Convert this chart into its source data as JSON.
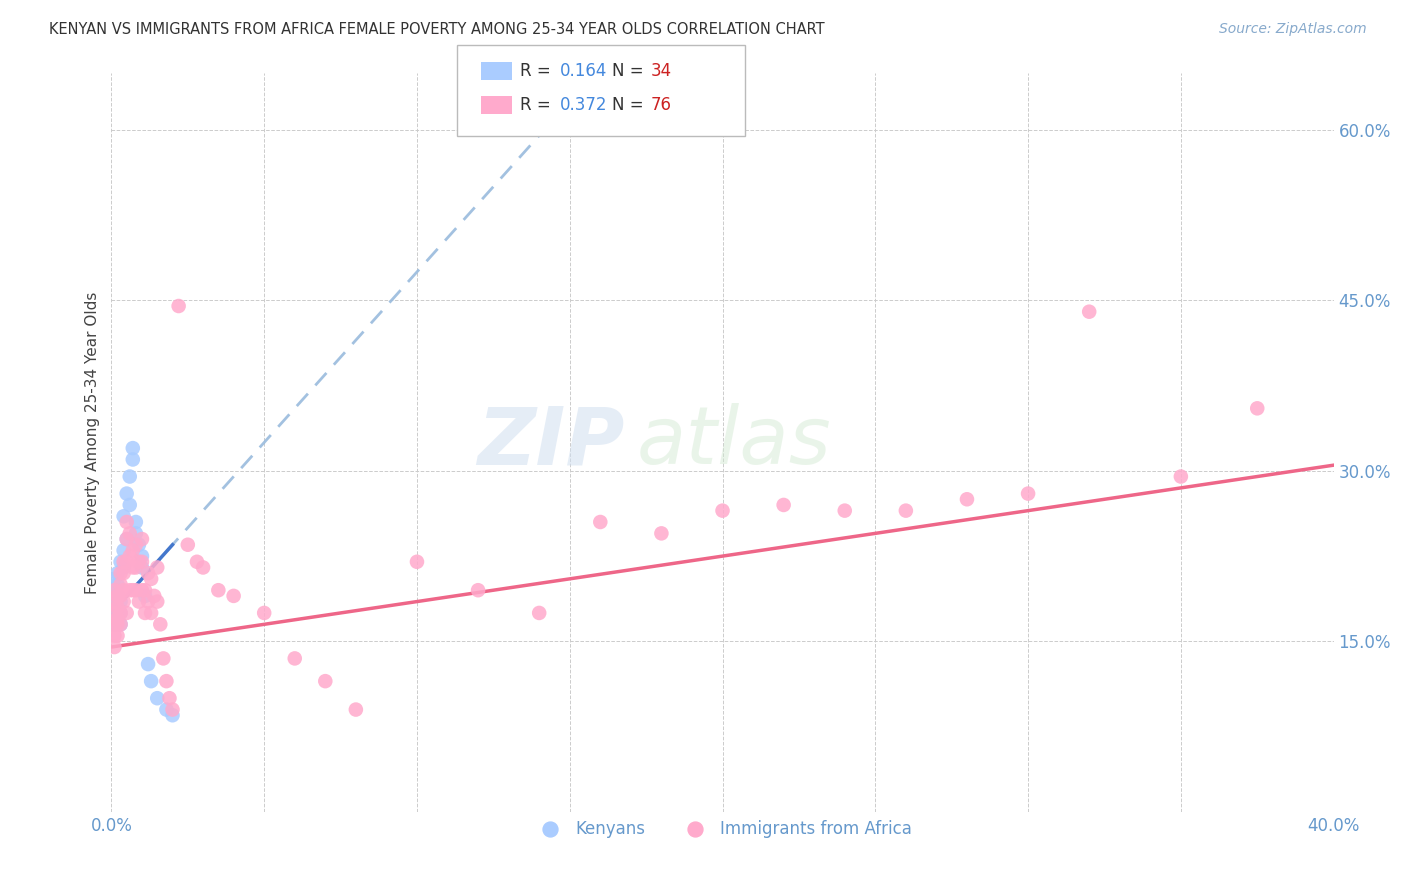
{
  "title": "KENYAN VS IMMIGRANTS FROM AFRICA FEMALE POVERTY AMONG 25-34 YEAR OLDS CORRELATION CHART",
  "source": "Source: ZipAtlas.com",
  "ylabel": "Female Poverty Among 25-34 Year Olds",
  "xmin": 0.0,
  "xmax": 0.4,
  "ymin": 0.0,
  "ymax": 0.65,
  "grid_color": "#cccccc",
  "background_color": "#ffffff",
  "kenyan_color": "#aaccff",
  "immigrant_color": "#ffaacc",
  "kenyan_line_color": "#4477cc",
  "immigrant_line_color": "#ee6688",
  "dashed_line_color": "#99bbdd",
  "legend_r_kenyan": "0.164",
  "legend_n_kenyan": "34",
  "legend_r_immigrant": "0.372",
  "legend_n_immigrant": "76",
  "watermark_zip": "ZIP",
  "watermark_atlas": "atlas",
  "kenyan_x": [
    0.001,
    0.001,
    0.001,
    0.001,
    0.001,
    0.002,
    0.002,
    0.002,
    0.002,
    0.002,
    0.003,
    0.003,
    0.003,
    0.003,
    0.004,
    0.004,
    0.004,
    0.005,
    0.005,
    0.006,
    0.006,
    0.007,
    0.007,
    0.008,
    0.008,
    0.009,
    0.01,
    0.01,
    0.011,
    0.012,
    0.013,
    0.015,
    0.018,
    0.02
  ],
  "kenyan_y": [
    0.175,
    0.165,
    0.185,
    0.195,
    0.205,
    0.18,
    0.19,
    0.175,
    0.2,
    0.21,
    0.185,
    0.175,
    0.165,
    0.22,
    0.215,
    0.23,
    0.26,
    0.24,
    0.28,
    0.295,
    0.27,
    0.32,
    0.31,
    0.255,
    0.245,
    0.235,
    0.225,
    0.215,
    0.19,
    0.13,
    0.115,
    0.1,
    0.09,
    0.085
  ],
  "immigrant_x": [
    0.001,
    0.001,
    0.001,
    0.001,
    0.001,
    0.001,
    0.002,
    0.002,
    0.002,
    0.002,
    0.002,
    0.003,
    0.003,
    0.003,
    0.003,
    0.003,
    0.004,
    0.004,
    0.004,
    0.004,
    0.005,
    0.005,
    0.005,
    0.005,
    0.006,
    0.006,
    0.006,
    0.007,
    0.007,
    0.007,
    0.008,
    0.008,
    0.008,
    0.009,
    0.009,
    0.01,
    0.01,
    0.01,
    0.011,
    0.011,
    0.012,
    0.012,
    0.013,
    0.013,
    0.014,
    0.015,
    0.015,
    0.016,
    0.017,
    0.018,
    0.019,
    0.02,
    0.022,
    0.025,
    0.028,
    0.03,
    0.035,
    0.04,
    0.05,
    0.06,
    0.07,
    0.08,
    0.1,
    0.12,
    0.14,
    0.16,
    0.18,
    0.2,
    0.22,
    0.24,
    0.26,
    0.28,
    0.3,
    0.32,
    0.35,
    0.375
  ],
  "immigrant_y": [
    0.175,
    0.185,
    0.165,
    0.195,
    0.155,
    0.145,
    0.18,
    0.19,
    0.17,
    0.165,
    0.155,
    0.21,
    0.2,
    0.19,
    0.175,
    0.165,
    0.22,
    0.21,
    0.195,
    0.185,
    0.24,
    0.255,
    0.22,
    0.175,
    0.245,
    0.225,
    0.195,
    0.23,
    0.215,
    0.195,
    0.235,
    0.215,
    0.195,
    0.22,
    0.185,
    0.24,
    0.22,
    0.195,
    0.195,
    0.175,
    0.21,
    0.185,
    0.205,
    0.175,
    0.19,
    0.215,
    0.185,
    0.165,
    0.135,
    0.115,
    0.1,
    0.09,
    0.445,
    0.235,
    0.22,
    0.215,
    0.195,
    0.19,
    0.175,
    0.135,
    0.115,
    0.09,
    0.22,
    0.195,
    0.175,
    0.255,
    0.245,
    0.265,
    0.27,
    0.265,
    0.265,
    0.275,
    0.28,
    0.44,
    0.295,
    0.355
  ]
}
